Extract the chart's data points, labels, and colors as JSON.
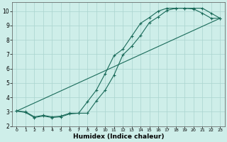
{
  "xlabel": "Humidex (Indice chaleur)",
  "bg_color": "#ceeee9",
  "grid_color": "#aad4ce",
  "line_color": "#1a6b5a",
  "xlim": [
    -0.5,
    23.5
  ],
  "ylim": [
    2.0,
    10.6
  ],
  "yticks": [
    2,
    3,
    4,
    5,
    6,
    7,
    8,
    9,
    10
  ],
  "xtick_labels": [
    "0",
    "1",
    "2",
    "3",
    "4",
    "5",
    "6",
    "7",
    "8",
    "9",
    "10",
    "11",
    "12",
    "13",
    "14",
    "15",
    "16",
    "17",
    "18",
    "19",
    "20",
    "21",
    "22",
    "23"
  ],
  "series1_x": [
    0,
    1,
    2,
    3,
    4,
    5,
    6,
    7,
    8,
    9,
    10,
    11,
    12,
    13,
    14,
    15,
    16,
    17,
    18,
    19,
    20,
    21,
    22,
    23
  ],
  "series1_y": [
    3.05,
    3.0,
    2.65,
    2.75,
    2.65,
    2.7,
    2.9,
    2.9,
    2.9,
    3.75,
    4.5,
    5.55,
    6.95,
    7.55,
    8.3,
    9.2,
    9.6,
    10.05,
    10.2,
    10.2,
    10.2,
    10.2,
    9.85,
    9.5
  ],
  "series2_x": [
    0,
    1,
    2,
    3,
    4,
    5,
    6,
    7,
    8,
    9,
    10,
    11,
    12,
    13,
    14,
    15,
    16,
    17,
    18,
    19,
    20,
    21,
    22,
    23
  ],
  "series2_y": [
    3.05,
    2.95,
    2.6,
    2.7,
    2.6,
    2.65,
    2.85,
    2.9,
    3.7,
    4.5,
    5.65,
    6.9,
    7.35,
    8.25,
    9.15,
    9.55,
    10.0,
    10.2,
    10.2,
    10.2,
    10.15,
    9.85,
    9.5,
    9.5
  ],
  "series3_x": [
    0,
    23
  ],
  "series3_y": [
    3.05,
    9.5
  ]
}
